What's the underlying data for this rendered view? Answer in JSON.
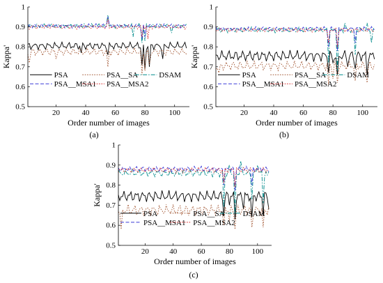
{
  "chart_data": [
    {
      "type": "line",
      "panel_label": "(a)",
      "xlabel": "Order number of images",
      "ylabel": "Kappa'",
      "xlim": [
        1,
        110
      ],
      "ylim": [
        0.5,
        1
      ],
      "xticks": [
        "20",
        "40",
        "60",
        "80",
        "100"
      ],
      "yticks": [
        "0.5",
        "0.6",
        "0.7",
        "0.8",
        "0.9",
        "1"
      ],
      "legend_rows": [
        [
          "PSA",
          "PSA__SA",
          "DSAM"
        ],
        [
          "PSA__MSA1",
          "PSA__MSA2"
        ]
      ],
      "series": [
        {
          "name": "PSA",
          "color": "#000000",
          "dash": "solid",
          "base": 0.805,
          "amp": 0.02,
          "anomalies": [
            [
              37,
              0.77
            ],
            [
              55,
              0.76
            ],
            [
              78,
              0.71
            ],
            [
              80,
              0.69
            ],
            [
              83,
              0.7
            ],
            [
              92,
              0.74
            ]
          ]
        },
        {
          "name": "PSA__SA",
          "color": "#a0522d",
          "dash": "dot",
          "base": 0.775,
          "amp": 0.02,
          "anomalies": [
            [
              2,
              0.72
            ],
            [
              20,
              0.74
            ],
            [
              55,
              0.7
            ],
            [
              78,
              0.66
            ],
            [
              80,
              0.68
            ],
            [
              83,
              0.71
            ]
          ]
        },
        {
          "name": "DSAM",
          "color": "#008b8b",
          "dash": "dashdot",
          "base": 0.905,
          "amp": 0.012,
          "anomalies": [
            [
              55,
              0.96
            ],
            [
              72,
              0.85
            ],
            [
              78,
              0.82
            ],
            [
              80,
              0.83
            ],
            [
              98,
              0.87
            ]
          ]
        },
        {
          "name": "PSA__MSA1",
          "color": "#3a3ad8",
          "dash": "dash",
          "base": 0.905,
          "amp": 0.012,
          "anomalies": [
            [
              55,
              0.95
            ],
            [
              78,
              0.84
            ],
            [
              80,
              0.85
            ]
          ]
        },
        {
          "name": "PSA__MSA2",
          "color": "#d62020",
          "dash": "dot",
          "base": 0.9,
          "amp": 0.012,
          "anomalies": [
            [
              55,
              0.94
            ],
            [
              78,
              0.85
            ],
            [
              82,
              0.84
            ]
          ]
        }
      ]
    },
    {
      "type": "line",
      "panel_label": "(b)",
      "xlabel": "Order number of images",
      "ylabel": "Kappa'",
      "xlim": [
        1,
        110
      ],
      "ylim": [
        0.5,
        1
      ],
      "xticks": [
        "20",
        "40",
        "60",
        "80",
        "100"
      ],
      "yticks": [
        "0.5",
        "0.6",
        "0.7",
        "0.8",
        "0.9",
        "1"
      ],
      "legend_rows": [
        [
          "PSA",
          "PSA__SA",
          "DSAM"
        ],
        [
          "PSA__MSA1",
          "PSA__MSA2"
        ]
      ],
      "series": [
        {
          "name": "PSA",
          "color": "#000000",
          "dash": "solid",
          "base": 0.755,
          "amp": 0.03,
          "anomalies": [
            [
              77,
              0.67
            ],
            [
              80,
              0.72
            ],
            [
              83,
              0.66
            ],
            [
              90,
              0.7
            ],
            [
              95,
              0.69
            ],
            [
              103,
              0.66
            ]
          ]
        },
        {
          "name": "PSA__SA",
          "color": "#a0522d",
          "dash": "dot",
          "base": 0.705,
          "amp": 0.025,
          "anomalies": [
            [
              3,
              0.67
            ],
            [
              77,
              0.61
            ],
            [
              80,
              0.64
            ],
            [
              83,
              0.62
            ],
            [
              95,
              0.63
            ],
            [
              103,
              0.62
            ]
          ]
        },
        {
          "name": "DSAM",
          "color": "#008b8b",
          "dash": "dashdot",
          "base": 0.885,
          "amp": 0.015,
          "anomalies": [
            [
              77,
              0.72
            ],
            [
              80,
              0.88
            ],
            [
              83,
              0.68
            ],
            [
              88,
              0.92
            ],
            [
              95,
              0.76
            ],
            [
              103,
              0.92
            ],
            [
              106,
              0.82
            ]
          ]
        },
        {
          "name": "PSA__MSA1",
          "color": "#3a3ad8",
          "dash": "dash",
          "base": 0.89,
          "amp": 0.012,
          "anomalies": [
            [
              77,
              0.8
            ],
            [
              83,
              0.78
            ],
            [
              95,
              0.82
            ]
          ]
        },
        {
          "name": "PSA__MSA2",
          "color": "#d62020",
          "dash": "dot",
          "base": 0.885,
          "amp": 0.012,
          "anomalies": [
            [
              77,
              0.82
            ],
            [
              83,
              0.8
            ]
          ]
        }
      ]
    },
    {
      "type": "line",
      "panel_label": "(c)",
      "xlabel": "Order number of images",
      "ylabel": "Kappa'",
      "xlim": [
        1,
        110
      ],
      "ylim": [
        0.5,
        1
      ],
      "xticks": [
        "20",
        "40",
        "60",
        "80",
        "100"
      ],
      "yticks": [
        "0.5",
        "0.6",
        "0.7",
        "0.8",
        "0.9",
        "1"
      ],
      "legend_rows": [
        [
          "PSA",
          "PSA__SA",
          "DSAM"
        ],
        [
          "PSA__MSA1",
          "PSA__MSA2"
        ]
      ],
      "series": [
        {
          "name": "PSA",
          "color": "#000000",
          "dash": "solid",
          "base": 0.745,
          "amp": 0.03,
          "anomalies": [
            [
              76,
              0.65
            ],
            [
              80,
              0.7
            ],
            [
              84,
              0.63
            ],
            [
              90,
              0.68
            ],
            [
              96,
              0.64
            ],
            [
              104,
              0.65
            ],
            [
              108,
              0.68
            ]
          ]
        },
        {
          "name": "PSA__SA",
          "color": "#a0522d",
          "dash": "dot",
          "base": 0.675,
          "amp": 0.03,
          "anomalies": [
            [
              3,
              0.58
            ],
            [
              76,
              0.6
            ],
            [
              80,
              0.62
            ],
            [
              84,
              0.58
            ],
            [
              96,
              0.59
            ],
            [
              104,
              0.59
            ]
          ]
        },
        {
          "name": "DSAM",
          "color": "#008b8b",
          "dash": "dashdot",
          "base": 0.86,
          "amp": 0.02,
          "anomalies": [
            [
              76,
              0.69
            ],
            [
              80,
              0.9
            ],
            [
              84,
              0.66
            ],
            [
              88,
              0.92
            ],
            [
              96,
              0.73
            ],
            [
              100,
              0.9
            ],
            [
              104,
              0.71
            ],
            [
              107,
              0.85
            ]
          ]
        },
        {
          "name": "PSA__MSA1",
          "color": "#3a3ad8",
          "dash": "dash",
          "base": 0.88,
          "amp": 0.015,
          "anomalies": [
            [
              76,
              0.8
            ],
            [
              84,
              0.77
            ],
            [
              96,
              0.8
            ]
          ]
        },
        {
          "name": "PSA__MSA2",
          "color": "#d62020",
          "dash": "dot",
          "base": 0.875,
          "amp": 0.015,
          "anomalies": [
            [
              76,
              0.81
            ],
            [
              84,
              0.79
            ]
          ]
        }
      ]
    }
  ]
}
